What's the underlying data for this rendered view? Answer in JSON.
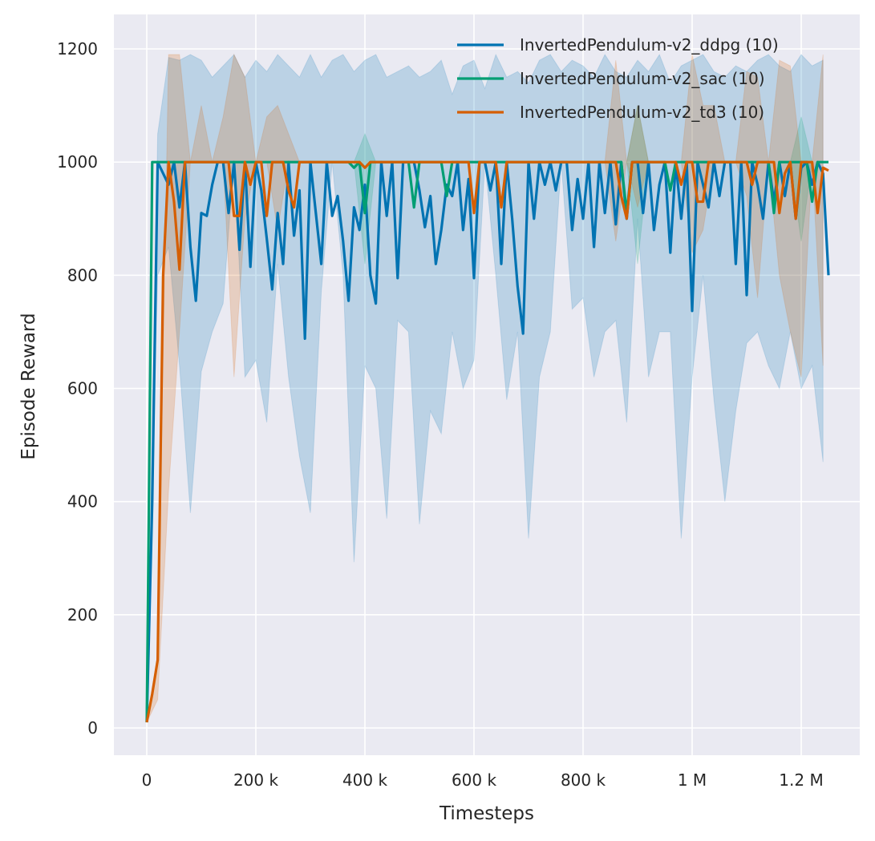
{
  "chart_data": {
    "type": "line",
    "title": "",
    "xlabel": "Timesteps",
    "ylabel": "Episode Reward",
    "xlim": [
      -60000,
      1310000
    ],
    "ylim": [
      -50,
      1260
    ],
    "grid": true,
    "legend": "top-right",
    "x_ticks": [
      0,
      200000,
      400000,
      600000,
      800000,
      1000000,
      1200000
    ],
    "x_tick_labels": [
      "0",
      "200 k",
      "400 k",
      "600 k",
      "800 k",
      "1 M",
      "1.2 M"
    ],
    "y_ticks": [
      0,
      200,
      400,
      600,
      800,
      1000,
      1200
    ],
    "y_tick_labels": [
      "0",
      "200",
      "400",
      "600",
      "800",
      "1000",
      "1200"
    ],
    "series": [
      {
        "name": "InvertedPendulum-v2_ddpg (10)",
        "color": "#0173b2",
        "values": [
          10,
          400,
          1000,
          980,
          960,
          1000,
          920,
          1000,
          850,
          755,
          910,
          905,
          960,
          1000,
          1000,
          910,
          1000,
          845,
          1000,
          815,
          1000,
          950,
          865,
          775,
          910,
          820,
          1000,
          870,
          950,
          688,
          1000,
          910,
          820,
          1000,
          905,
          940,
          860,
          755,
          920,
          880,
          960,
          800,
          750,
          1000,
          905,
          1000,
          795,
          1000,
          1000,
          1000,
          950,
          885,
          940,
          820,
          880,
          960,
          940,
          1000,
          880,
          970,
          795,
          1000,
          1000,
          950,
          1000,
          820,
          1000,
          900,
          780,
          697,
          1000,
          900,
          1000,
          960,
          1000,
          950,
          1000,
          1000,
          880,
          970,
          900,
          1000,
          850,
          1000,
          910,
          1000,
          890,
          1000,
          900,
          1000,
          1000,
          910,
          1000,
          880,
          960,
          1000,
          840,
          1000,
          900,
          1000,
          737,
          1000,
          960,
          920,
          1000,
          940,
          1000,
          1000,
          820,
          1000,
          765,
          1000,
          960,
          900,
          1000,
          930,
          1000,
          940,
          1000,
          900,
          990,
          1000,
          960,
          1000,
          980,
          800
        ],
        "band_lower": [
          10,
          800,
          850,
          640,
          380,
          630,
          700,
          750,
          1000,
          620,
          650,
          540,
          820,
          620,
          480,
          380,
          770,
          1000,
          800,
          293,
          640,
          600,
          370,
          720,
          700,
          360,
          560,
          520,
          700,
          600,
          650,
          1000,
          800,
          580,
          700,
          335,
          620,
          700,
          1000,
          740,
          760,
          620,
          700,
          720,
          540,
          900,
          620,
          700,
          700,
          335,
          620,
          800,
          580,
          400,
          560,
          680,
          700,
          640,
          600,
          700,
          600,
          640,
          470
        ],
        "band_upper": [
          10,
          1050,
          1185,
          1180,
          1190,
          1180,
          1150,
          1170,
          1190,
          1150,
          1180,
          1160,
          1190,
          1170,
          1150,
          1190,
          1150,
          1180,
          1190,
          1160,
          1180,
          1190,
          1150,
          1160,
          1170,
          1150,
          1160,
          1180,
          1120,
          1170,
          1180,
          1130,
          1190,
          1150,
          1160,
          1140,
          1180,
          1190,
          1160,
          1180,
          1170,
          1150,
          1190,
          1160,
          1150,
          1180,
          1160,
          1190,
          1140,
          1170,
          1180,
          1190,
          1160,
          1150,
          1170,
          1160,
          1180,
          1190,
          1170,
          1160,
          1190,
          1170,
          1180
        ]
      },
      {
        "name": "InvertedPendulum-v2_sac (10)",
        "color": "#029e73",
        "values": [
          10,
          1000,
          1000,
          1000,
          1000,
          1000,
          1000,
          1000,
          1000,
          1000,
          1000,
          1000,
          1000,
          1000,
          1000,
          1000,
          1000,
          1000,
          1000,
          1000,
          1000,
          1000,
          1000,
          1000,
          1000,
          1000,
          1000,
          1000,
          1000,
          1000,
          1000,
          1000,
          1000,
          1000,
          1000,
          1000,
          1000,
          1000,
          990,
          1000,
          910,
          1000,
          1000,
          1000,
          1000,
          1000,
          1000,
          1000,
          1000,
          920,
          1000,
          1000,
          1000,
          1000,
          1000,
          940,
          1000,
          1000,
          1000,
          1000,
          1000,
          1000,
          1000,
          1000,
          1000,
          1000,
          1000,
          1000,
          1000,
          1000,
          1000,
          1000,
          1000,
          1000,
          1000,
          1000,
          1000,
          1000,
          1000,
          1000,
          1000,
          1000,
          1000,
          1000,
          1000,
          1000,
          1000,
          1000,
          910,
          1000,
          1000,
          1000,
          1000,
          1000,
          1000,
          1000,
          950,
          1000,
          1000,
          1000,
          1000,
          1000,
          1000,
          1000,
          1000,
          1000,
          1000,
          1000,
          1000,
          1000,
          1000,
          1000,
          1000,
          1000,
          1000,
          910,
          1000,
          1000,
          1000,
          1000,
          1000,
          1000,
          930,
          1000,
          1000,
          1000
        ],
        "band_lower": [
          10,
          1000,
          1000,
          1000,
          1000,
          1000,
          1000,
          1000,
          1000,
          1000,
          1000,
          1000,
          1000,
          1000,
          1000,
          1000,
          1000,
          1000,
          1000,
          1000,
          820,
          1000,
          1000,
          1000,
          1000,
          1000,
          1000,
          1000,
          1000,
          1000,
          1000,
          1000,
          1000,
          1000,
          1000,
          1000,
          1000,
          1000,
          1000,
          1000,
          1000,
          1000,
          1000,
          1000,
          1000,
          820,
          1000,
          1000,
          1000,
          1000,
          1000,
          1000,
          1000,
          1000,
          1000,
          1000,
          1000,
          1000,
          1000,
          1000,
          860,
          1000,
          1000
        ],
        "band_upper": [
          10,
          1000,
          1000,
          1000,
          1000,
          1000,
          1000,
          1000,
          1000,
          1000,
          1000,
          1000,
          1000,
          1000,
          1000,
          1000,
          1000,
          1000,
          1000,
          1000,
          1050,
          1000,
          1000,
          1000,
          1000,
          1000,
          1000,
          1000,
          1000,
          1000,
          1000,
          1000,
          1000,
          1000,
          1000,
          1000,
          1000,
          1000,
          1000,
          1000,
          1000,
          1000,
          1000,
          1000,
          1000,
          1100,
          1000,
          1000,
          1000,
          1000,
          1000,
          1000,
          1000,
          1000,
          1000,
          1000,
          1000,
          1000,
          1000,
          1000,
          1080,
          1000,
          1000
        ]
      },
      {
        "name": "InvertedPendulum-v2_td3 (10)",
        "color": "#d55e00",
        "values": [
          10,
          60,
          120,
          800,
          1000,
          930,
          810,
          1000,
          1000,
          1000,
          1000,
          1000,
          1000,
          1000,
          1000,
          1000,
          905,
          905,
          1000,
          960,
          1000,
          1000,
          905,
          1000,
          1000,
          1000,
          950,
          920,
          1000,
          1000,
          1000,
          1000,
          1000,
          1000,
          1000,
          1000,
          1000,
          1000,
          1000,
          1000,
          990,
          1000,
          1000,
          1000,
          1000,
          1000,
          1000,
          1000,
          1000,
          1000,
          1000,
          1000,
          1000,
          1000,
          1000,
          1000,
          1000,
          1000,
          1000,
          1000,
          910,
          1000,
          1000,
          1000,
          1000,
          920,
          1000,
          1000,
          1000,
          1000,
          1000,
          1000,
          1000,
          1000,
          1000,
          1000,
          1000,
          1000,
          1000,
          1000,
          1000,
          1000,
          1000,
          1000,
          1000,
          1000,
          1000,
          940,
          900,
          1000,
          1000,
          1000,
          1000,
          1000,
          1000,
          1000,
          1000,
          1000,
          960,
          1000,
          1000,
          930,
          930,
          1000,
          1000,
          1000,
          1000,
          1000,
          1000,
          1000,
          1000,
          960,
          1000,
          1000,
          1000,
          1000,
          910,
          980,
          1000,
          900,
          1000,
          1000,
          1000,
          910,
          990,
          985
        ],
        "band_lower": [
          10,
          50,
          420,
          700,
          1000,
          1000,
          1000,
          1000,
          620,
          900,
          1000,
          1000,
          880,
          1000,
          1000,
          1000,
          1000,
          1000,
          1000,
          1000,
          1000,
          1000,
          1000,
          1000,
          1000,
          1000,
          1000,
          1000,
          1000,
          1000,
          1000,
          1000,
          1000,
          1000,
          1000,
          1000,
          1000,
          1000,
          1000,
          1000,
          1000,
          1000,
          1000,
          860,
          1000,
          920,
          1000,
          1000,
          1000,
          1000,
          840,
          880,
          1000,
          1000,
          1000,
          940,
          760,
          1000,
          800,
          700,
          620,
          1000,
          640
        ],
        "band_upper": [
          10,
          130,
          1190,
          1190,
          1000,
          1100,
          1000,
          1080,
          1190,
          1150,
          1000,
          1080,
          1100,
          1050,
          1000,
          1000,
          1000,
          1000,
          1000,
          1000,
          1000,
          1000,
          1000,
          1000,
          1000,
          1000,
          1000,
          1000,
          1000,
          1000,
          1000,
          1000,
          1000,
          1000,
          1000,
          1000,
          1000,
          1000,
          1000,
          1000,
          1000,
          1000,
          1000,
          1180,
          1000,
          1100,
          1000,
          1000,
          1000,
          1000,
          1190,
          1100,
          1100,
          1000,
          1000,
          1160,
          1150,
          1000,
          1180,
          1170,
          1000,
          1000,
          1190
        ]
      }
    ]
  }
}
